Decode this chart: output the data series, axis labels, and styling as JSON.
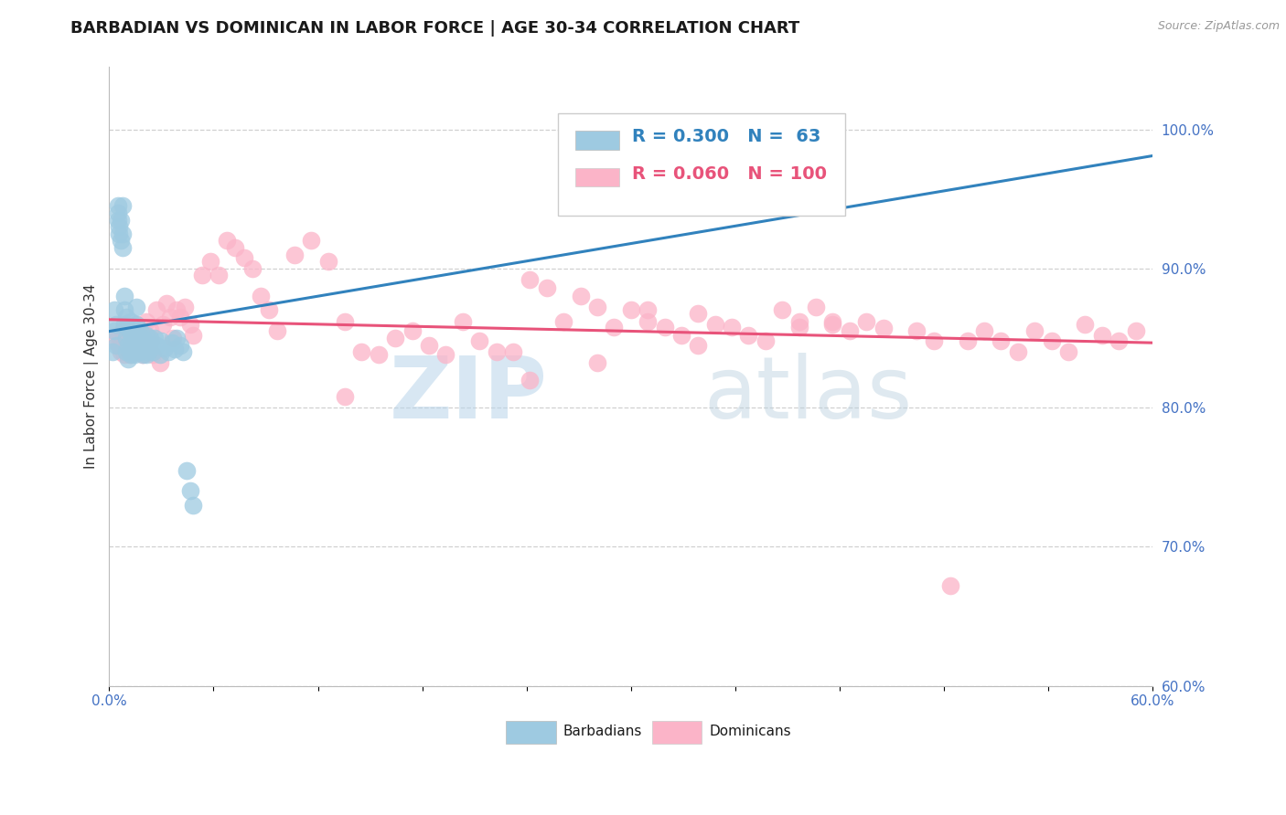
{
  "title": "BARBADIAN VS DOMINICAN IN LABOR FORCE | AGE 30-34 CORRELATION CHART",
  "source_text": "Source: ZipAtlas.com",
  "ylabel": "In Labor Force | Age 30-34",
  "xlim": [
    0.0,
    0.62
  ],
  "ylim": [
    0.6,
    1.045
  ],
  "xticks": [
    0.0,
    0.062,
    0.124,
    0.186,
    0.248,
    0.31,
    0.372,
    0.434,
    0.496,
    0.558,
    0.62
  ],
  "xticklabels_show": [
    "0.0%",
    "",
    "",
    "",
    "",
    "",
    "",
    "",
    "",
    "",
    "60.0%"
  ],
  "yticks_right": [
    0.6,
    0.7,
    0.8,
    0.9,
    1.0
  ],
  "yticklabels_right": [
    "60.0%",
    "70.0%",
    "80.0%",
    "90.0%",
    "100.0%"
  ],
  "blue_R": 0.3,
  "blue_N": 63,
  "pink_R": 0.06,
  "pink_N": 100,
  "blue_color": "#9ecae1",
  "pink_color": "#fbb4c8",
  "blue_line_color": "#3182bd",
  "pink_line_color": "#e8537a",
  "legend_blue_label": "Barbadians",
  "legend_pink_label": "Dominicans",
  "title_color": "#1a1a1a",
  "tick_color": "#4472c4",
  "grid_color": "#d0d0d0",
  "blue_scatter_x": [
    0.002,
    0.003,
    0.003,
    0.004,
    0.004,
    0.005,
    0.005,
    0.005,
    0.006,
    0.006,
    0.007,
    0.007,
    0.008,
    0.008,
    0.008,
    0.009,
    0.009,
    0.009,
    0.01,
    0.01,
    0.01,
    0.011,
    0.011,
    0.011,
    0.012,
    0.012,
    0.013,
    0.013,
    0.013,
    0.014,
    0.014,
    0.015,
    0.015,
    0.016,
    0.016,
    0.017,
    0.018,
    0.018,
    0.019,
    0.02,
    0.02,
    0.021,
    0.022,
    0.022,
    0.023,
    0.024,
    0.025,
    0.026,
    0.027,
    0.028,
    0.03,
    0.031,
    0.033,
    0.035,
    0.037,
    0.039,
    0.04,
    0.042,
    0.044,
    0.046,
    0.048,
    0.05,
    0.31
  ],
  "blue_scatter_y": [
    0.84,
    0.855,
    0.87,
    0.845,
    0.86,
    0.935,
    0.94,
    0.945,
    0.925,
    0.93,
    0.92,
    0.935,
    0.915,
    0.925,
    0.945,
    0.86,
    0.87,
    0.88,
    0.84,
    0.85,
    0.865,
    0.835,
    0.845,
    0.858,
    0.84,
    0.855,
    0.838,
    0.85,
    0.862,
    0.84,
    0.852,
    0.838,
    0.848,
    0.86,
    0.872,
    0.852,
    0.84,
    0.855,
    0.845,
    0.838,
    0.85,
    0.848,
    0.838,
    0.852,
    0.84,
    0.85,
    0.845,
    0.84,
    0.85,
    0.845,
    0.838,
    0.848,
    0.843,
    0.84,
    0.847,
    0.842,
    0.85,
    0.845,
    0.84,
    0.755,
    0.74,
    0.73,
    0.998
  ],
  "pink_scatter_x": [
    0.003,
    0.005,
    0.006,
    0.007,
    0.008,
    0.009,
    0.01,
    0.011,
    0.012,
    0.013,
    0.014,
    0.015,
    0.016,
    0.017,
    0.018,
    0.019,
    0.02,
    0.021,
    0.022,
    0.024,
    0.025,
    0.026,
    0.028,
    0.03,
    0.032,
    0.034,
    0.036,
    0.038,
    0.04,
    0.042,
    0.045,
    0.048,
    0.05,
    0.055,
    0.06,
    0.065,
    0.07,
    0.075,
    0.08,
    0.085,
    0.09,
    0.095,
    0.1,
    0.11,
    0.12,
    0.13,
    0.14,
    0.15,
    0.16,
    0.17,
    0.18,
    0.19,
    0.2,
    0.21,
    0.22,
    0.23,
    0.24,
    0.25,
    0.26,
    0.27,
    0.28,
    0.29,
    0.3,
    0.31,
    0.32,
    0.33,
    0.34,
    0.35,
    0.36,
    0.37,
    0.38,
    0.39,
    0.4,
    0.41,
    0.42,
    0.43,
    0.44,
    0.45,
    0.46,
    0.48,
    0.49,
    0.5,
    0.51,
    0.52,
    0.53,
    0.54,
    0.55,
    0.56,
    0.57,
    0.58,
    0.59,
    0.6,
    0.61,
    0.14,
    0.25,
    0.32,
    0.41,
    0.29,
    0.35,
    0.43
  ],
  "pink_scatter_y": [
    0.848,
    0.852,
    0.845,
    0.84,
    0.855,
    0.838,
    0.848,
    0.842,
    0.838,
    0.845,
    0.852,
    0.84,
    0.86,
    0.855,
    0.848,
    0.842,
    0.838,
    0.852,
    0.862,
    0.856,
    0.848,
    0.838,
    0.87,
    0.832,
    0.86,
    0.875,
    0.865,
    0.85,
    0.87,
    0.865,
    0.872,
    0.86,
    0.852,
    0.895,
    0.905,
    0.895,
    0.92,
    0.915,
    0.908,
    0.9,
    0.88,
    0.87,
    0.855,
    0.91,
    0.92,
    0.905,
    0.862,
    0.84,
    0.838,
    0.85,
    0.855,
    0.845,
    0.838,
    0.862,
    0.848,
    0.84,
    0.84,
    0.892,
    0.886,
    0.862,
    0.88,
    0.872,
    0.858,
    0.87,
    0.862,
    0.858,
    0.852,
    0.845,
    0.86,
    0.858,
    0.852,
    0.848,
    0.87,
    0.862,
    0.872,
    0.86,
    0.855,
    0.862,
    0.857,
    0.855,
    0.848,
    0.672,
    0.848,
    0.855,
    0.848,
    0.84,
    0.855,
    0.848,
    0.84,
    0.86,
    0.852,
    0.848,
    0.855,
    0.808,
    0.82,
    0.87,
    0.858,
    0.832,
    0.868,
    0.862
  ]
}
